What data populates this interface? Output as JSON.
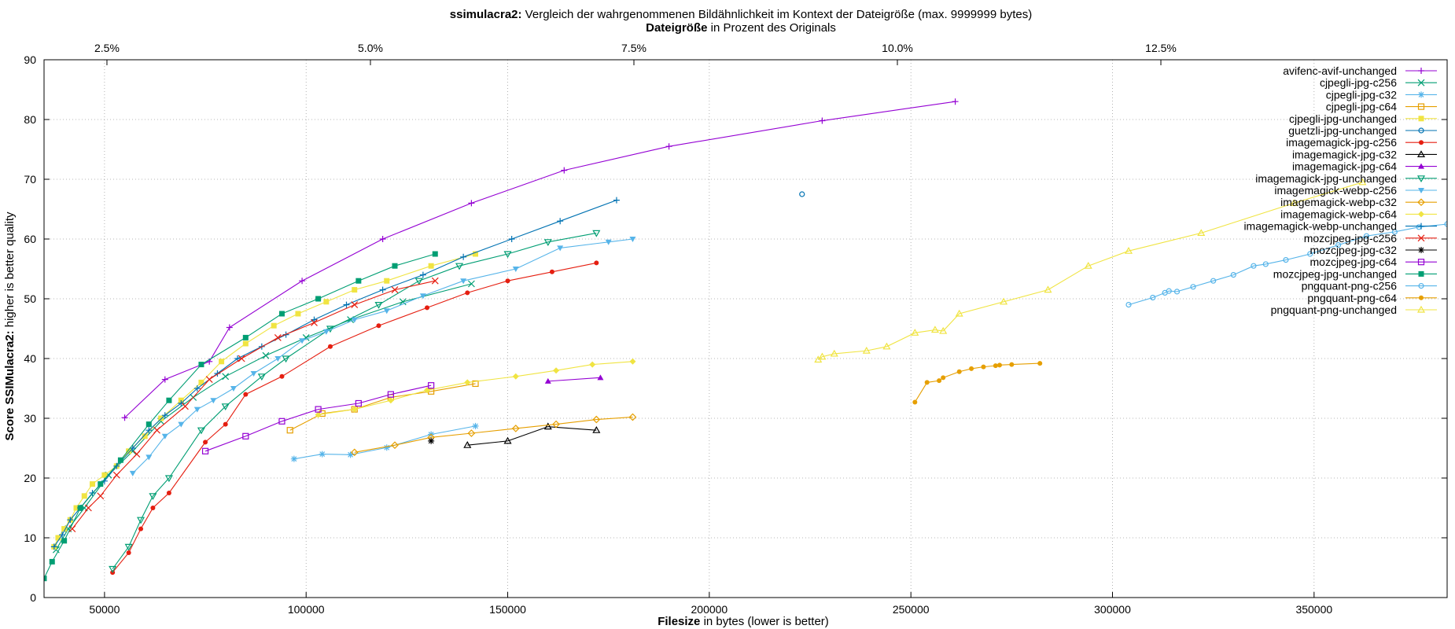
{
  "chart_data": {
    "type": "line",
    "title": {
      "bold": "ssimulacra2:",
      "rest": " Vergleich der wahrgenommenen Bildähnlichkeit im Kontext der Dateigröße (max. 9999999 bytes)"
    },
    "x2label": {
      "bold": "Dateigröße",
      "rest": " in Prozent des Originals"
    },
    "xlabel": {
      "bold": "Filesize",
      "rest": " in bytes (lower is better)"
    },
    "ylabel": {
      "bold": "Score SSIMulacra2:",
      "rest": " higher is better quality"
    },
    "xlim": [
      35000,
      383000
    ],
    "ylim": [
      0,
      90
    ],
    "x_ticks": [
      {
        "v": 50000,
        "label": "50000"
      },
      {
        "v": 100000,
        "label": "100000"
      },
      {
        "v": 150000,
        "label": "150000"
      },
      {
        "v": 200000,
        "label": "200000"
      },
      {
        "v": 250000,
        "label": "250000"
      },
      {
        "v": 300000,
        "label": "300000"
      },
      {
        "v": 350000,
        "label": "350000"
      }
    ],
    "y_ticks": [
      {
        "v": 0,
        "label": "0"
      },
      {
        "v": 10,
        "label": "10"
      },
      {
        "v": 20,
        "label": "20"
      },
      {
        "v": 30,
        "label": "30"
      },
      {
        "v": 40,
        "label": "40"
      },
      {
        "v": 50,
        "label": "50"
      },
      {
        "v": 60,
        "label": "60"
      },
      {
        "v": 70,
        "label": "70"
      },
      {
        "v": 80,
        "label": "80"
      },
      {
        "v": 90,
        "label": "90"
      }
    ],
    "x2_ticks": [
      {
        "v": 2.5,
        "label": "2.5%"
      },
      {
        "v": 5.0,
        "label": "5.0%"
      },
      {
        "v": 7.5,
        "label": "7.5%"
      },
      {
        "v": 10.0,
        "label": "10.0%"
      },
      {
        "v": 12.5,
        "label": "12.5%"
      }
    ],
    "x2_scale": {
      "x_at_2_5_percent": 50600,
      "x_at_12_5_percent": 312000
    },
    "grid": true,
    "legend_position": "top-right",
    "series": [
      {
        "name": "avifenc-avif-unchanged",
        "color": "#9400d3",
        "marker": "plus",
        "x": [
          55000,
          65000,
          76000,
          81000,
          99000,
          119000,
          141000,
          164000,
          190000,
          228000,
          261000
        ],
        "y": [
          30.1,
          36.5,
          39.5,
          45.2,
          53.0,
          60.0,
          66.0,
          71.5,
          75.5,
          79.8,
          83.0
        ]
      },
      {
        "name": "cjpegli-jpg-c256",
        "color": "#009e73",
        "marker": "x",
        "x": [
          38000,
          41000,
          45000,
          51000,
          57000,
          64000,
          72000,
          80000,
          90000,
          100000,
          111000,
          124000,
          141000
        ],
        "y": [
          8.0,
          11.5,
          15.0,
          20.5,
          24.5,
          29.5,
          33.5,
          37.0,
          40.5,
          43.5,
          46.5,
          49.5,
          52.5
        ]
      },
      {
        "name": "cjpegli-jpg-c32",
        "color": "#56b4e9",
        "marker": "star",
        "x": [
          97000,
          104000,
          111000,
          120000,
          131000,
          142000
        ],
        "y": [
          23.2,
          24.0,
          23.9,
          25.1,
          27.3,
          28.7
        ]
      },
      {
        "name": "cjpegli-jpg-c64",
        "color": "#e69f00",
        "marker": "square",
        "x": [
          96000,
          104000,
          112000,
          121000,
          131000,
          142000
        ],
        "y": [
          28.0,
          30.8,
          31.5,
          33.5,
          34.5,
          35.8
        ]
      },
      {
        "name": "cjpegli-jpg-unchanged",
        "color": "#f0e442",
        "marker": "filled-square",
        "x": [
          37500,
          38500,
          40000,
          41500,
          43000,
          45000,
          47000,
          50000,
          53000,
          56000,
          60000,
          64000,
          69000,
          74000,
          79000,
          85000,
          92000,
          98000,
          105000,
          112000,
          120000,
          131000,
          142000
        ],
        "y": [
          8.5,
          10.0,
          11.5,
          13.0,
          15.0,
          17.0,
          19.0,
          20.5,
          22.0,
          24.5,
          27.0,
          30.0,
          33.0,
          36.0,
          39.5,
          42.5,
          45.5,
          47.5,
          49.5,
          51.5,
          53.0,
          55.5,
          57.5
        ]
      },
      {
        "name": "guetzli-jpg-unchanged",
        "color": "#0072b2",
        "marker": "circle",
        "x": [
          223000
        ],
        "y": [
          67.5
        ]
      },
      {
        "name": "imagemagick-jpg-c256",
        "color": "#e51e10",
        "marker": "filled-circle",
        "x": [
          52000,
          56000,
          59000,
          62000,
          66000,
          75000,
          80000,
          85000,
          94000,
          106000,
          118000,
          130000,
          140000,
          150000,
          161000,
          172000
        ],
        "y": [
          4.2,
          7.5,
          11.5,
          15.0,
          17.5,
          26.0,
          29.0,
          34.0,
          37.0,
          42.0,
          45.5,
          48.5,
          51.0,
          53.0,
          54.5,
          56.0
        ]
      },
      {
        "name": "imagemagick-jpg-c32",
        "color": "#000000",
        "marker": "triangle",
        "x": [
          140000,
          150000,
          160000,
          172000
        ],
        "y": [
          25.5,
          26.2,
          28.6,
          28.0
        ]
      },
      {
        "name": "imagemagick-jpg-c64",
        "color": "#9400d3",
        "marker": "filled-triangle",
        "x": [
          160000,
          173000
        ],
        "y": [
          36.2,
          36.8
        ]
      },
      {
        "name": "imagemagick-jpg-unchanged",
        "color": "#009e73",
        "marker": "inv-triangle",
        "x": [
          52000,
          56000,
          59000,
          62000,
          66000,
          74000,
          80000,
          89000,
          95000,
          106000,
          118000,
          128000,
          138000,
          150000,
          160000,
          172000
        ],
        "y": [
          4.8,
          8.5,
          13.0,
          17.0,
          20.0,
          28.0,
          32.0,
          37.0,
          40.0,
          45.0,
          49.0,
          53.0,
          55.5,
          57.5,
          59.5,
          61.0
        ]
      },
      {
        "name": "imagemagick-webp-c256",
        "color": "#56b4e9",
        "marker": "filled-inv-triangle",
        "x": [
          57000,
          61000,
          65000,
          69000,
          73000,
          77000,
          82000,
          87000,
          93000,
          99000,
          105000,
          112000,
          120000,
          129000,
          139000,
          152000,
          163000,
          175000,
          181000
        ],
        "y": [
          20.8,
          23.5,
          27.0,
          29.0,
          31.5,
          33.0,
          35.0,
          37.5,
          40.0,
          43.0,
          44.5,
          46.5,
          48.0,
          50.5,
          53.0,
          55.0,
          58.5,
          59.5,
          60.0
        ]
      },
      {
        "name": "imagemagick-webp-c32",
        "color": "#e69f00",
        "marker": "diamond",
        "x": [
          112000,
          122000,
          131000,
          141000,
          152000,
          162000,
          172000,
          181000
        ],
        "y": [
          24.3,
          25.5,
          26.8,
          27.5,
          28.3,
          29.0,
          29.8,
          30.2
        ]
      },
      {
        "name": "imagemagick-webp-c64",
        "color": "#f0e442",
        "marker": "filled-diamond",
        "x": [
          103000,
          112000,
          121000,
          130000,
          140000,
          152000,
          162000,
          171000,
          181000
        ],
        "y": [
          30.6,
          31.5,
          33.0,
          34.7,
          36.0,
          37.0,
          38.0,
          39.0,
          39.5
        ]
      },
      {
        "name": "imagemagick-webp-unchanged",
        "color": "#0072b2",
        "marker": "plus",
        "x": [
          37500,
          39500,
          41500,
          44000,
          47000,
          50000,
          53000,
          57000,
          61000,
          65000,
          69000,
          73000,
          78000,
          83000,
          89000,
          95000,
          102000,
          110000,
          119000,
          129000,
          139000,
          151000,
          163000,
          177000
        ],
        "y": [
          8.5,
          10.5,
          13.0,
          15.0,
          17.5,
          19.5,
          22.0,
          25.0,
          28.0,
          30.5,
          32.5,
          35.0,
          37.5,
          40.0,
          42.0,
          44.0,
          46.5,
          49.0,
          51.5,
          54.0,
          57.0,
          60.0,
          63.0,
          66.5
        ]
      },
      {
        "name": "mozcjpeg-jpg-c256",
        "color": "#e51e10",
        "marker": "x",
        "x": [
          42000,
          46000,
          49000,
          53000,
          58000,
          63000,
          70000,
          76000,
          84000,
          93000,
          102000,
          112000,
          122000,
          132000
        ],
        "y": [
          11.5,
          15.0,
          17.0,
          20.5,
          24.0,
          28.0,
          32.0,
          36.5,
          40.0,
          43.5,
          46.0,
          49.0,
          51.5,
          53.0
        ]
      },
      {
        "name": "mozcjpeg-jpg-c32",
        "color": "#000000",
        "marker": "star",
        "x": [
          131000
        ],
        "y": [
          26.2
        ]
      },
      {
        "name": "mozcjpeg-jpg-c64",
        "color": "#9400d3",
        "marker": "square",
        "x": [
          75000,
          85000,
          94000,
          103000,
          113000,
          121000,
          131000
        ],
        "y": [
          24.5,
          27.0,
          29.5,
          31.5,
          32.5,
          34.0,
          35.5
        ]
      },
      {
        "name": "mozcjpeg-jpg-unchanged",
        "color": "#009e73",
        "marker": "filled-square",
        "x": [
          35000,
          37000,
          40000,
          44000,
          49000,
          54000,
          61000,
          66000,
          74000,
          85000,
          94000,
          103000,
          113000,
          122000,
          132000
        ],
        "y": [
          3.2,
          6.0,
          9.5,
          15.0,
          19.0,
          23.0,
          29.0,
          33.0,
          39.0,
          43.5,
          47.5,
          50.0,
          53.0,
          55.5,
          57.5
        ]
      },
      {
        "name": "pngquant-png-c256",
        "color": "#56b4e9",
        "marker": "circle",
        "x": [
          304000,
          310000,
          313000,
          314000,
          316000,
          320000,
          325000,
          330000,
          335000,
          338000,
          343000,
          349000,
          356000,
          363000,
          370000,
          376000,
          383000
        ],
        "y": [
          49.0,
          50.2,
          51.0,
          51.3,
          51.2,
          52.0,
          53.0,
          54.0,
          55.5,
          55.8,
          56.5,
          57.5,
          59.0,
          60.5,
          61.2,
          62.0,
          62.5
        ]
      },
      {
        "name": "pngquant-png-c64",
        "color": "#e69f00",
        "marker": "filled-circle",
        "x": [
          251000,
          254000,
          257000,
          258000,
          262000,
          265000,
          268000,
          271000,
          272000,
          275000,
          282000
        ],
        "y": [
          32.7,
          36.0,
          36.3,
          36.8,
          37.8,
          38.3,
          38.6,
          38.8,
          38.9,
          39.0,
          39.2
        ]
      },
      {
        "name": "pngquant-png-unchanged",
        "color": "#f0e442",
        "marker": "triangle",
        "x": [
          227000,
          228000,
          231000,
          239000,
          244000,
          251000,
          256000,
          258000,
          262000,
          273000,
          284000,
          294000,
          304000,
          322000,
          345000,
          362000
        ],
        "y": [
          39.8,
          40.3,
          40.8,
          41.3,
          42.0,
          44.3,
          44.8,
          44.6,
          47.5,
          49.5,
          51.5,
          55.5,
          58.0,
          61.0,
          66.0,
          69.5
        ]
      }
    ]
  }
}
